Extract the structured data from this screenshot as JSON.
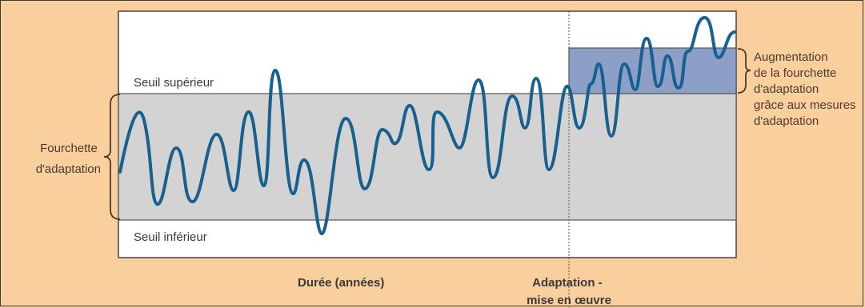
{
  "labels": {
    "upper_threshold": "Seuil supérieur",
    "lower_threshold": "Seuil inférieur",
    "range_left": [
      "Fourchette",
      "d'adaptation"
    ],
    "range_right": [
      "Augmentation",
      "de la fourchette",
      "d'adaptation",
      "grâce aux mesures",
      "d'adaptation"
    ],
    "x_axis": "Durée (années)",
    "adaptation": [
      "Adaptation -",
      "mise en œuvre"
    ]
  },
  "colors": {
    "background": "#f9cf9e",
    "plot_area": "#ffffff",
    "coping_range": "#d3d3d3",
    "increased_range": "#8c9fc6",
    "curve": "#17608f"
  }
}
